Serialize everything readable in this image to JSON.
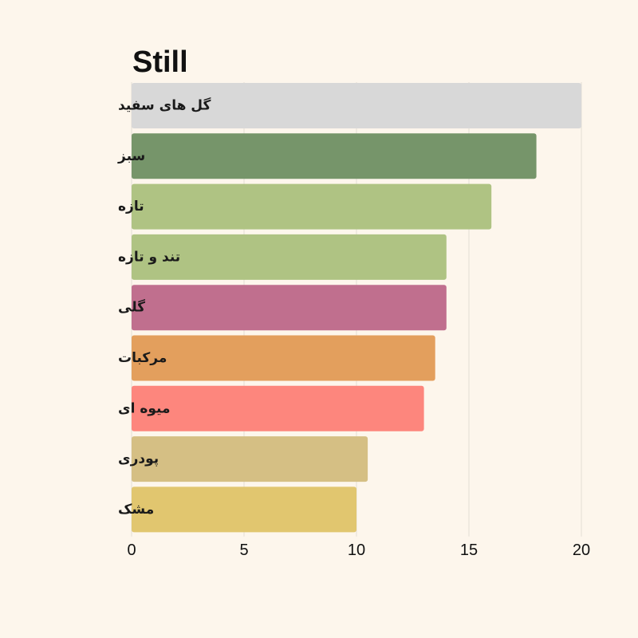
{
  "chart_data": {
    "type": "bar",
    "orientation": "horizontal",
    "title": "Still",
    "xlabel": "",
    "ylabel": "",
    "xlim": [
      0,
      20
    ],
    "xticks": [
      0,
      5,
      10,
      15,
      20
    ],
    "grid": "vertical",
    "categories": [
      "گل های سفید",
      "سبز",
      "تازه",
      "تند و تازه",
      "گلی",
      "مرکبات",
      "میوه ای",
      "پودری",
      "مشک"
    ],
    "values": [
      20,
      18,
      16,
      14,
      14,
      13.5,
      13,
      10.5,
      10
    ],
    "colors": [
      "#d8d8d8",
      "#76956a",
      "#afc383",
      "#afc383",
      "#c06f8e",
      "#e39f5d",
      "#fd867d",
      "#d5bf84",
      "#e1c66f"
    ]
  }
}
